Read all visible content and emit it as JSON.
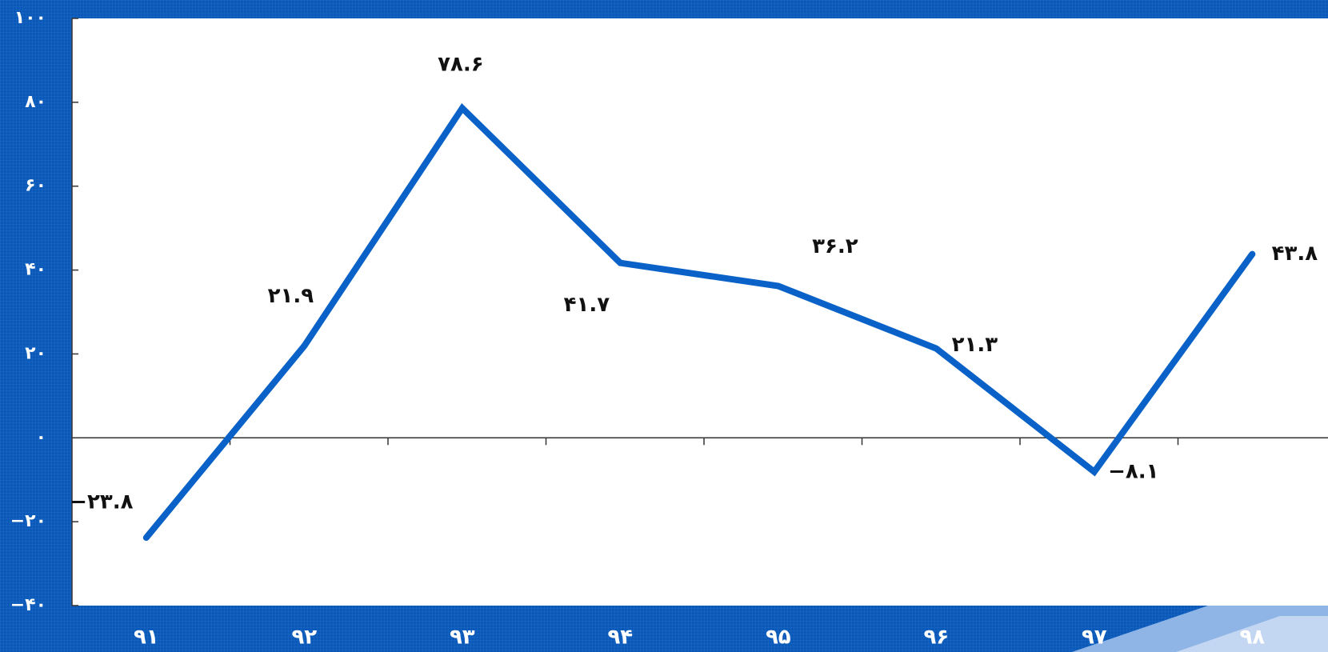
{
  "chart_data": {
    "type": "line",
    "categories": [
      "۹۱",
      "۹۲",
      "۹۳",
      "۹۴",
      "۹۵",
      "۹۶",
      "۹۷",
      "۹۸"
    ],
    "series": [
      {
        "color": "#0a62c8",
        "values": [
          -23.8,
          21.9,
          78.6,
          41.7,
          36.2,
          21.3,
          -8.1,
          43.8
        ],
        "value_labels": [
          "−۲۳.۸",
          "۲۱.۹",
          "۷۸.۶",
          "۴۱.۷",
          "۳۶.۲",
          "۲۱.۳",
          "−۸.۱",
          "۴۳.۸"
        ]
      }
    ],
    "ylim": [
      -40,
      100
    ],
    "yticks": [
      {
        "value": -40,
        "label": "−۴۰"
      },
      {
        "value": -20,
        "label": "−۲۰"
      },
      {
        "value": 0,
        "label": "۰"
      },
      {
        "value": 20,
        "label": "۲۰"
      },
      {
        "value": 40,
        "label": "۴۰"
      },
      {
        "value": 60,
        "label": "۶۰"
      },
      {
        "value": 80,
        "label": "۸۰"
      },
      {
        "value": 100,
        "label": "۱۰۰"
      }
    ]
  }
}
